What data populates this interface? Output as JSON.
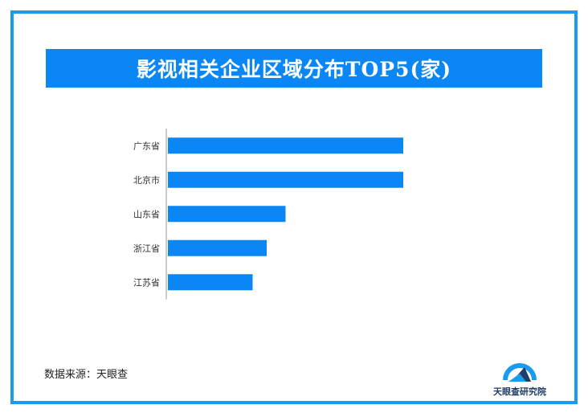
{
  "chart_data": {
    "type": "bar",
    "orientation": "horizontal",
    "title": "影视相关企业区域分布TOP5(家)",
    "categories": [
      "广东省",
      "北京市",
      "山东省",
      "浙江省",
      "江苏省"
    ],
    "values": [
      100,
      100,
      50,
      42,
      36
    ],
    "bar_color": "#0a86f5",
    "grid": false,
    "legend": "none"
  },
  "source": "数据来源：天眼查",
  "logo": {
    "icon": "tianyancha-logo-icon",
    "text": "天眼查研究院",
    "colors": {
      "arc": "#1a9bf0",
      "text": "#1f3d66"
    }
  },
  "colors": {
    "frame": "#1a9bf0",
    "title_bg": "#0a86f5"
  }
}
